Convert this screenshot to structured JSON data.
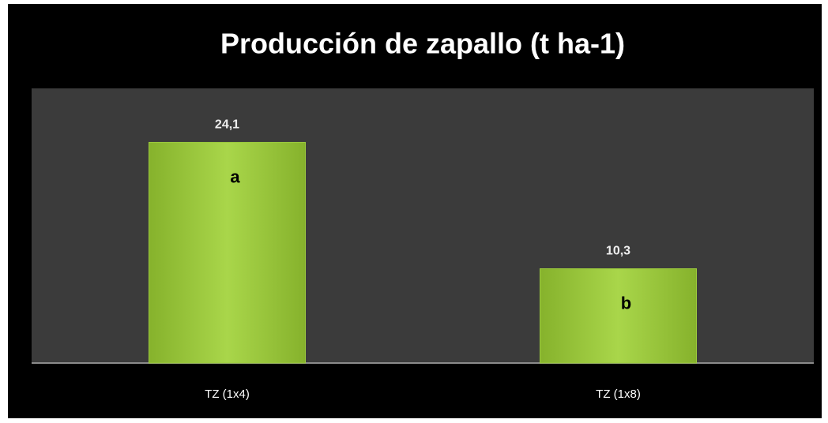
{
  "chart_data": {
    "type": "bar",
    "title": "Producción de zapallo (t ha-1)",
    "categories": [
      "TZ (1x4)",
      "TZ (1x8)"
    ],
    "values": [
      24.1,
      10.3
    ],
    "value_labels": [
      "24,1",
      "10,3"
    ],
    "annotations": [
      "a",
      "b"
    ],
    "color": "#9dcc3e",
    "ylim": [
      0,
      30
    ]
  }
}
